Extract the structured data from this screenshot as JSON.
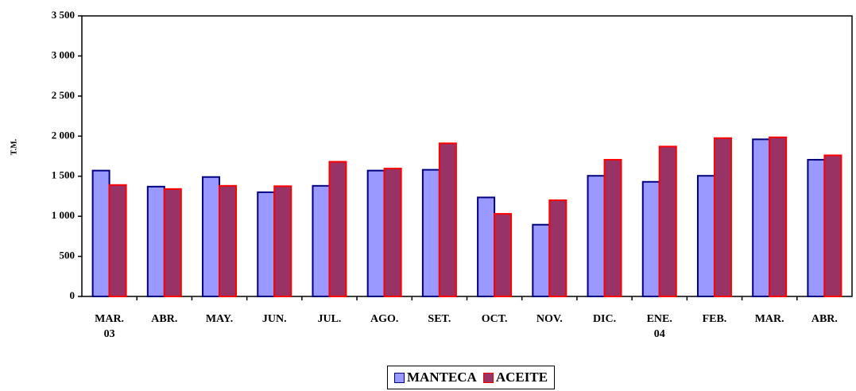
{
  "chart_data": {
    "type": "bar",
    "y_label": "T.M.",
    "categories": [
      "MAR.\n03",
      "ABR.",
      "MAY.",
      "JUN.",
      "JUL.",
      "AGO.",
      "SET.",
      "OCT.",
      "NOV.",
      "DIC.",
      "ENE.\n04",
      "FEB.",
      "MAR.",
      "ABR."
    ],
    "series": [
      {
        "name": "MANTECA",
        "color": "#9999ff",
        "stroke": "#000080",
        "values": [
          1570,
          1370,
          1490,
          1300,
          1380,
          1570,
          1580,
          1235,
          895,
          1505,
          1430,
          1505,
          1960,
          1705
        ]
      },
      {
        "name": "ACEITE",
        "color": "#993366",
        "stroke": "#ff0000",
        "values": [
          1390,
          1340,
          1380,
          1375,
          1680,
          1595,
          1910,
          1030,
          1200,
          1705,
          1870,
          1975,
          1985,
          1760
        ]
      }
    ],
    "ylim": [
      0,
      3500
    ],
    "yticks": [
      0,
      500,
      {
        "value": 1000,
        "label": "1 000"
      },
      {
        "value": 1500,
        "label": "1 500"
      },
      {
        "value": 2000,
        "label": "2 000"
      },
      {
        "value": 2500,
        "label": "2 500"
      },
      {
        "value": 3000,
        "label": "3 000"
      },
      {
        "value": 3500,
        "label": "3 500"
      }
    ]
  }
}
